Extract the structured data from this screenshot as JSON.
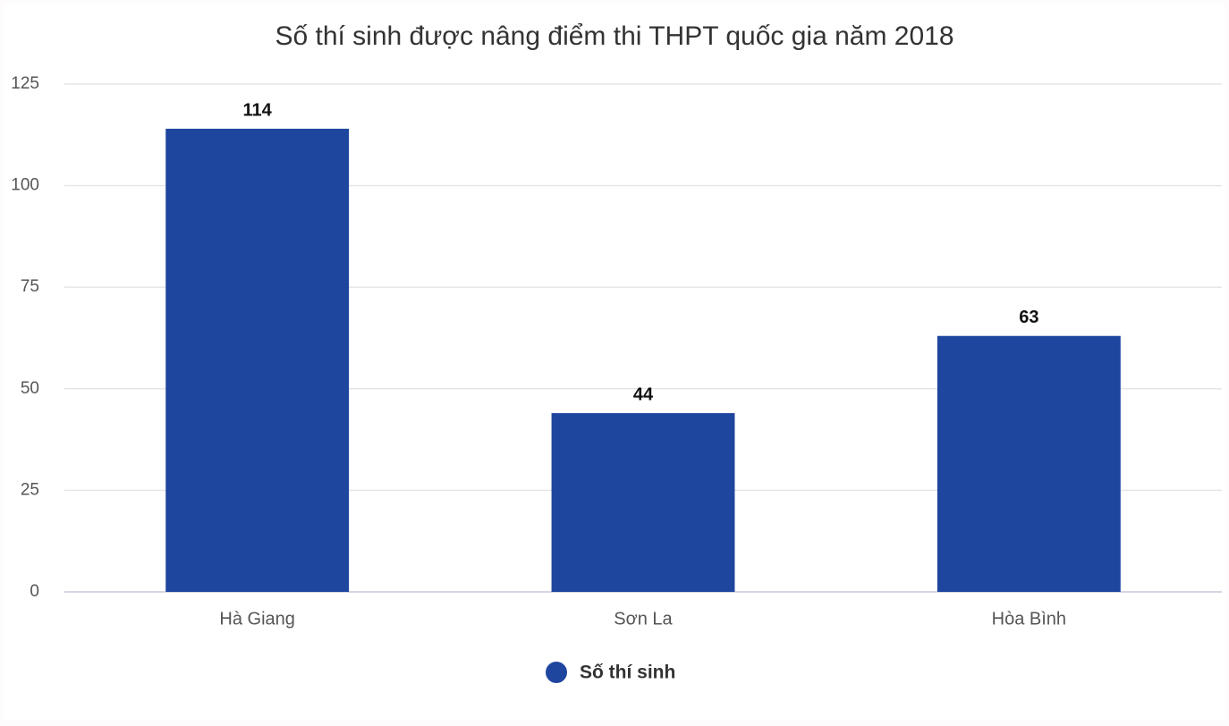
{
  "chart_data": {
    "type": "bar",
    "title": "Số thí sinh được nâng điểm thi THPT quốc gia năm 2018",
    "categories": [
      "Hà Giang",
      "Sơn La",
      "Hòa Bình"
    ],
    "series": [
      {
        "name": "Số thí sinh",
        "color": "#1f469e",
        "values": [
          114,
          44,
          63
        ]
      }
    ],
    "ylim": [
      0,
      125
    ],
    "yticks": [
      0,
      25,
      50,
      75,
      100,
      125
    ],
    "grid": true,
    "legend": "bottom"
  }
}
